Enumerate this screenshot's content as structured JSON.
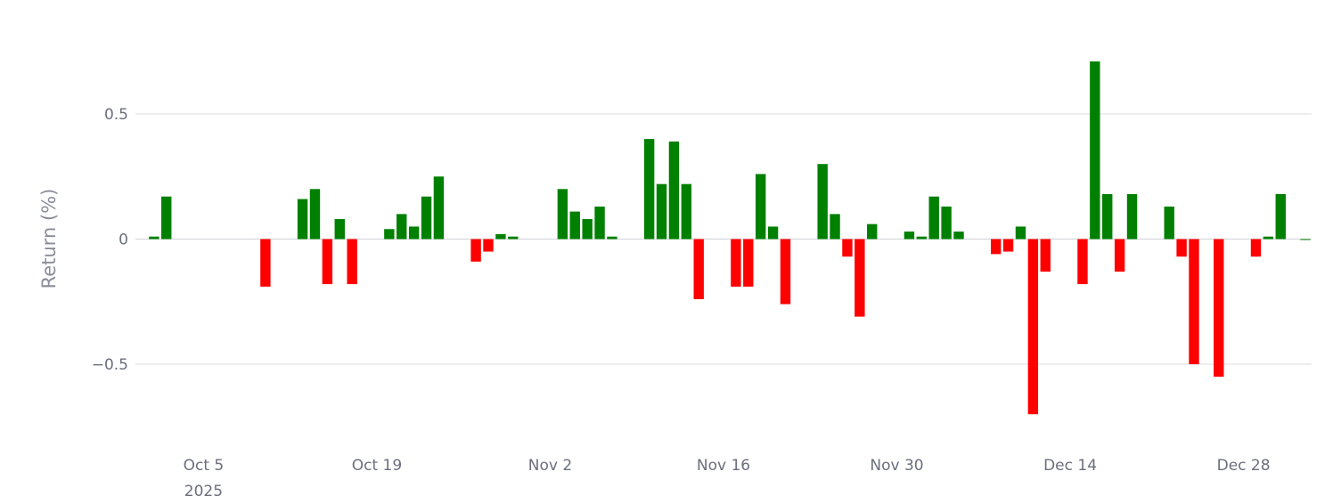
{
  "chart_data": {
    "type": "bar",
    "ylabel": "Return (%)",
    "xlabel": "",
    "title": "",
    "ylim": [
      -0.8,
      0.75
    ],
    "xlim": [
      "2025-09-30",
      "2026-01-02"
    ],
    "grid": true,
    "positive_color": "#008000",
    "negative_color": "#ff0000",
    "y_ticks": [
      {
        "value": 0.5,
        "label": "0.5"
      },
      {
        "value": 0,
        "label": "0"
      },
      {
        "value": -0.5,
        "label": "−0.5"
      }
    ],
    "x_ticks": [
      {
        "date": "2025-10-05",
        "label": "Oct 5",
        "sublabel": "2025"
      },
      {
        "date": "2025-10-19",
        "label": "Oct 19"
      },
      {
        "date": "2025-11-02",
        "label": "Nov 2"
      },
      {
        "date": "2025-11-16",
        "label": "Nov 16"
      },
      {
        "date": "2025-11-30",
        "label": "Nov 30"
      },
      {
        "date": "2025-12-14",
        "label": "Dec 14"
      },
      {
        "date": "2025-12-28",
        "label": "Dec 28"
      }
    ],
    "series": [
      {
        "x": [
          "2025-10-01",
          "2025-10-02",
          "2025-10-10",
          "2025-10-13",
          "2025-10-14",
          "2025-10-15",
          "2025-10-16",
          "2025-10-17",
          "2025-10-20",
          "2025-10-21",
          "2025-10-22",
          "2025-10-23",
          "2025-10-24",
          "2025-10-27",
          "2025-10-28",
          "2025-10-29",
          "2025-10-30",
          "2025-11-03",
          "2025-11-04",
          "2025-11-05",
          "2025-11-06",
          "2025-11-07",
          "2025-11-10",
          "2025-11-11",
          "2025-11-12",
          "2025-11-13",
          "2025-11-14",
          "2025-11-17",
          "2025-11-18",
          "2025-11-19",
          "2025-11-20",
          "2025-11-21",
          "2025-11-24",
          "2025-11-25",
          "2025-11-26",
          "2025-11-27",
          "2025-11-28",
          "2025-12-01",
          "2025-12-02",
          "2025-12-03",
          "2025-12-04",
          "2025-12-05",
          "2025-12-08",
          "2025-12-09",
          "2025-12-10",
          "2025-12-11",
          "2025-12-12",
          "2025-12-15",
          "2025-12-16",
          "2025-12-17",
          "2025-12-18",
          "2025-12-19",
          "2025-12-22",
          "2025-12-23",
          "2025-12-24",
          "2025-12-26",
          "2025-12-29",
          "2025-12-30",
          "2025-12-31",
          "2026-01-02"
        ],
        "values": [
          0.01,
          0.17,
          -0.19,
          0.16,
          0.2,
          -0.18,
          0.08,
          -0.18,
          0.04,
          0.1,
          0.05,
          0.17,
          0.25,
          -0.09,
          -0.05,
          0.02,
          0.01,
          0.2,
          0.11,
          0.08,
          0.13,
          0.01,
          0.4,
          0.22,
          0.39,
          0.22,
          -0.24,
          -0.19,
          -0.19,
          0.26,
          0.05,
          -0.26,
          0.3,
          0.1,
          -0.07,
          -0.31,
          0.06,
          0.03,
          0.01,
          0.17,
          0.13,
          0.03,
          -0.06,
          -0.05,
          0.05,
          -0.7,
          -0.13,
          -0.18,
          0.71,
          0.18,
          -0.13,
          0.18,
          0.13,
          -0.07,
          -0.5,
          -0.55,
          -0.07,
          0.01,
          0.18,
          0.0
        ]
      }
    ]
  }
}
